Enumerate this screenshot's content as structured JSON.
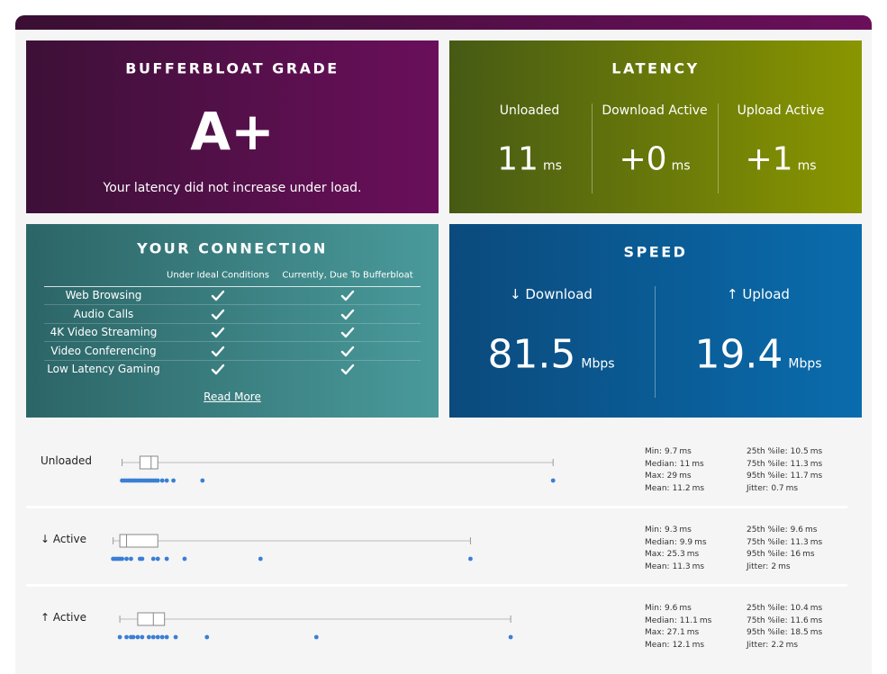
{
  "grade": {
    "title": "BUFFERBLOAT GRADE",
    "grade": "A+",
    "message": "Your latency did not increase under load."
  },
  "latency": {
    "title": "LATENCY",
    "items": [
      {
        "label": "Unloaded",
        "value": 11,
        "unit": "ms"
      },
      {
        "label": "Download Active",
        "value": "+0",
        "unit": "ms"
      },
      {
        "label": "Upload Active",
        "value": "+1",
        "unit": "ms"
      }
    ]
  },
  "connection": {
    "title": "YOUR CONNECTION",
    "columns": [
      "Under Ideal Conditions",
      "Currently, Due To Bufferbloat"
    ],
    "rows": [
      {
        "label": "Web Browsing",
        "ideal": true,
        "current": true
      },
      {
        "label": "Audio Calls",
        "ideal": true,
        "current": true
      },
      {
        "label": "4K Video Streaming",
        "ideal": true,
        "current": true
      },
      {
        "label": "Video Conferencing",
        "ideal": true,
        "current": true
      },
      {
        "label": "Low Latency Gaming",
        "ideal": true,
        "current": true
      }
    ],
    "link": "Read More"
  },
  "speed": {
    "title": "SPEED",
    "items": [
      {
        "label": "↓ Download",
        "value": 81.5,
        "unit": "Mbps"
      },
      {
        "label": "↑ Upload",
        "value": 19.4,
        "unit": "Mbps"
      }
    ]
  },
  "latency_details": [
    {
      "label": "Unloaded",
      "stats": {
        "min": {
          "label": "Min:",
          "value": 9.7,
          "unit": "ms"
        },
        "median": {
          "label": "Median:",
          "value": 11,
          "unit": "ms"
        },
        "max": {
          "label": "Max:",
          "value": 29,
          "unit": "ms"
        },
        "mean": {
          "label": "Mean:",
          "value": 11.2,
          "unit": "ms"
        },
        "p25": {
          "label": "25th %ile:",
          "value": 10.5,
          "unit": "ms"
        },
        "p75": {
          "label": "75th %ile:",
          "value": 11.3,
          "unit": "ms"
        },
        "p95": {
          "label": "95th %ile:",
          "value": 11.7,
          "unit": "ms"
        },
        "jitter": {
          "label": "Jitter:",
          "value": 0.7,
          "unit": "ms"
        }
      },
      "samples": [
        9.7,
        9.8,
        9.9,
        10.0,
        10.1,
        10.2,
        10.3,
        10.4,
        10.5,
        10.6,
        10.7,
        10.8,
        10.9,
        11.0,
        11.1,
        11.2,
        11.3,
        11.5,
        11.7,
        12.0,
        13.3,
        29
      ]
    },
    {
      "label": "↓ Active",
      "stats": {
        "min": {
          "label": "Min:",
          "value": 9.3,
          "unit": "ms"
        },
        "median": {
          "label": "Median:",
          "value": 9.9,
          "unit": "ms"
        },
        "max": {
          "label": "Max:",
          "value": 25.3,
          "unit": "ms"
        },
        "mean": {
          "label": "Mean:",
          "value": 11.3,
          "unit": "ms"
        },
        "p25": {
          "label": "25th %ile:",
          "value": 9.6,
          "unit": "ms"
        },
        "p75": {
          "label": "75th %ile:",
          "value": 11.3,
          "unit": "ms"
        },
        "p95": {
          "label": "95th %ile:",
          "value": 16,
          "unit": "ms"
        },
        "jitter": {
          "label": "Jitter:",
          "value": 2,
          "unit": "ms"
        }
      },
      "samples": [
        9.3,
        9.4,
        9.5,
        9.6,
        9.7,
        9.9,
        10.1,
        10.5,
        10.6,
        11.1,
        11.3,
        11.7,
        12.5,
        15.9,
        25.3
      ]
    },
    {
      "label": "↑ Active",
      "stats": {
        "min": {
          "label": "Min:",
          "value": 9.6,
          "unit": "ms"
        },
        "median": {
          "label": "Median:",
          "value": 11.1,
          "unit": "ms"
        },
        "max": {
          "label": "Max:",
          "value": 27.1,
          "unit": "ms"
        },
        "mean": {
          "label": "Mean:",
          "value": 12.1,
          "unit": "ms"
        },
        "p25": {
          "label": "25th %ile:",
          "value": 10.4,
          "unit": "ms"
        },
        "p75": {
          "label": "75th %ile:",
          "value": 11.6,
          "unit": "ms"
        },
        "p95": {
          "label": "95th %ile:",
          "value": 18.5,
          "unit": "ms"
        },
        "jitter": {
          "label": "Jitter:",
          "value": 2.2,
          "unit": "ms"
        }
      },
      "samples": [
        9.6,
        9.9,
        10.1,
        10.2,
        10.4,
        10.6,
        10.9,
        11.1,
        11.3,
        11.5,
        11.7,
        12.1,
        13.5,
        18.4,
        27.1
      ]
    }
  ]
}
